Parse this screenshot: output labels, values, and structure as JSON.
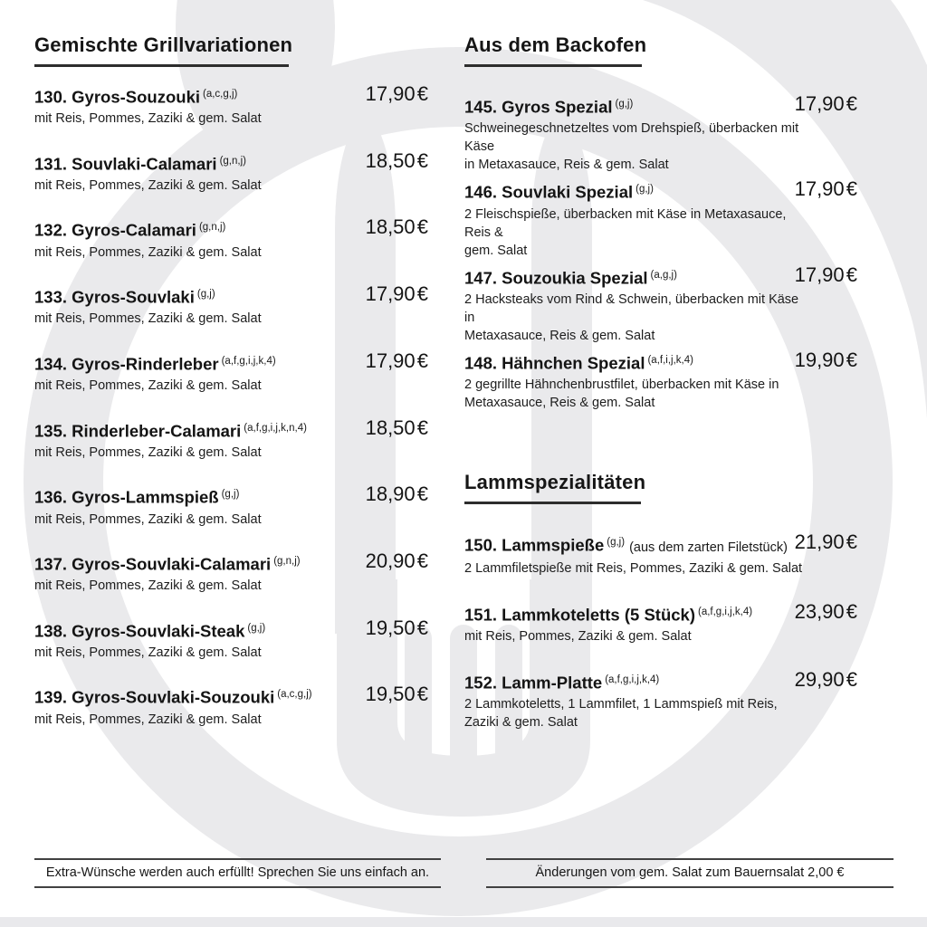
{
  "page": {
    "background_color": "#ffffff",
    "watermark_color": "#eaeaec",
    "watermark_icon": "cutlery-plate-watermark"
  },
  "sections": [
    {
      "id": "grill",
      "title": "Gemischte Grillvariationen",
      "items": [
        {
          "number": "130.",
          "name": "Gyros-Souzouki",
          "allergens": "(a,c,g,j)",
          "price": "17,90 €",
          "description": "mit Reis, Pommes, Zaziki & gem. Salat"
        },
        {
          "number": "131.",
          "name": "Souvlaki-Calamari",
          "allergens": "(g,n,j)",
          "price": "18,50 €",
          "description": "mit Reis, Pommes, Zaziki & gem. Salat"
        },
        {
          "number": "132.",
          "name": "Gyros-Calamari",
          "allergens": "(g,n,j)",
          "price": "18,50 €",
          "description": "mit Reis, Pommes, Zaziki & gem. Salat"
        },
        {
          "number": "133.",
          "name": "Gyros-Souvlaki",
          "allergens": "(g,j)",
          "price": "17,90 €",
          "description": "mit Reis, Pommes, Zaziki & gem. Salat"
        },
        {
          "number": "134.",
          "name": "Gyros-Rinderleber",
          "allergens": "(a,f,g,i,j,k,4)",
          "price": "17,90 €",
          "description": "mit Reis, Pommes, Zaziki & gem. Salat"
        },
        {
          "number": "135.",
          "name": "Rinderleber-Calamari",
          "allergens": "(a,f,g,i,j,k,n,4)",
          "price": "18,50 €",
          "description": "mit Reis, Pommes, Zaziki & gem. Salat"
        },
        {
          "number": "136.",
          "name": "Gyros-Lammspieß",
          "allergens": "(g,j)",
          "price": "18,90 €",
          "description": "mit Reis, Pommes, Zaziki & gem. Salat"
        },
        {
          "number": "137.",
          "name": "Gyros-Souvlaki-Calamari",
          "allergens": "(g,n,j)",
          "price": "20,90 €",
          "description": "mit Reis, Pommes, Zaziki & gem. Salat"
        },
        {
          "number": "138.",
          "name": "Gyros-Souvlaki-Steak",
          "allergens": "(g,j)",
          "price": "19,50 €",
          "description": "mit Reis, Pommes, Zaziki & gem. Salat"
        },
        {
          "number": "139.",
          "name": "Gyros-Souvlaki-Souzouki",
          "allergens": "(a,c,g,j)",
          "price": "19,50 €",
          "description": "mit Reis, Pommes, Zaziki & gem. Salat"
        }
      ]
    },
    {
      "id": "backofen",
      "title": "Aus dem Backofen",
      "items": [
        {
          "number": "145.",
          "name": "Gyros Spezial",
          "allergens": "(g,j)",
          "price": "17,90 €",
          "description": "Schweinegeschnetzeltes vom Drehspieß, überbacken mit Käse\nin Metaxasauce, Reis & gem. Salat"
        },
        {
          "number": "146.",
          "name": "Souvlaki Spezial",
          "allergens": "(g,j)",
          "price": "17,90 €",
          "description": "2 Fleischspieße, überbacken mit Käse in Metaxasauce, Reis &\ngem. Salat"
        },
        {
          "number": "147.",
          "name": "Souzoukia Spezial",
          "allergens": "(a,g,j)",
          "price": "17,90 €",
          "description": "2 Hacksteaks vom Rind & Schwein, überbacken mit Käse in\nMetaxasauce, Reis & gem. Salat"
        },
        {
          "number": "148.",
          "name": "Hähnchen Spezial",
          "allergens": "(a,f,i,j,k,4)",
          "price": "19,90 €",
          "description": "2 gegrillte Hähnchenbrustfilet, überbacken mit Käse in\nMetaxasauce, Reis & gem. Salat"
        }
      ]
    },
    {
      "id": "lamm",
      "title": "Lammspezialitäten",
      "items": [
        {
          "number": "150.",
          "name": "Lammspieße",
          "allergens": "(g,j)",
          "note": "(aus dem zarten Filetstück)",
          "price": "21,90 €",
          "description": "2 Lammfiletspieße mit Reis, Pommes, Zaziki & gem. Salat"
        },
        {
          "number": "151.",
          "name": "Lammkoteletts (5 Stück)",
          "allergens": "(a,f,g,i,j,k,4)",
          "price": "23,90 €",
          "description": "mit Reis, Pommes, Zaziki & gem. Salat"
        },
        {
          "number": "152.",
          "name": "Lamm-Platte",
          "allergens": "(a,f,g,i,j,k,4)",
          "price": "29,90 €",
          "description": "2 Lammkoteletts, 1 Lammfilet, 1 Lammspieß mit Reis,\nZaziki & gem. Salat"
        }
      ]
    }
  ],
  "footers": {
    "left": "Extra-Wünsche werden auch erfüllt! Sprechen Sie uns einfach an.",
    "right": "Änderungen vom gem. Salat zum Bauernsalat 2,00 €"
  }
}
